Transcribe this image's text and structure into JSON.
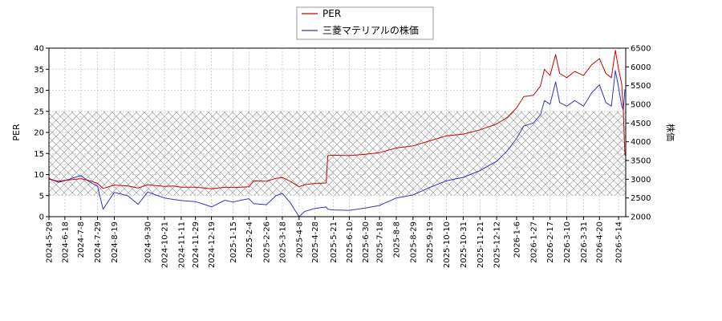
{
  "chart_data": {
    "type": "line",
    "title": "",
    "legend": {
      "placement": "top-center",
      "entries": [
        {
          "name": "PER",
          "color": "#cc0000"
        },
        {
          "name": "三菱マテリアルの株価",
          "color": "#3333cc"
        }
      ]
    },
    "y_left": {
      "label": "PER",
      "min": 0,
      "max": 40,
      "ticks": [
        "0",
        "5",
        "10",
        "15",
        "20",
        "25",
        "30",
        "35",
        "40"
      ]
    },
    "y_right": {
      "label": "株価",
      "min": 2000,
      "max": 6500,
      "ticks": [
        "2000",
        "2500",
        "3000",
        "3500",
        "4000",
        "4500",
        "5000",
        "5500",
        "6000",
        "6500"
      ]
    },
    "x_ticks": [
      "2024-5-29",
      "2024-6-18",
      "2024-7-8",
      "2024-7-29",
      "2024-8-19",
      "2024-9-30",
      "2024-10-21",
      "2024-11-11",
      "2024-11-29",
      "2024-12-19",
      "2025-1-15",
      "2025-2-4",
      "2025-2-26",
      "2025-3-18",
      "2025-4-8",
      "2025-4-28",
      "2025-5-21",
      "2025-6-10",
      "2025-6-30",
      "2025-7-18",
      "2025-8-8",
      "2025-8-29",
      "2025-9-19",
      "2025-10-10",
      "2025-10-31",
      "2025-11-21",
      "2025-12-12",
      "2026-1-6",
      "2026-1-27",
      "2026-2-17",
      "2026-3-10",
      "2026-3-31",
      "2026-4-20",
      "2026-5-14"
    ],
    "band": {
      "y_from": 5,
      "y_to": 25,
      "axis": "left",
      "pattern": "crosshatch"
    },
    "grid": true,
    "series": [
      {
        "name": "PER",
        "axis": "left",
        "color": "#cc0000",
        "points": [
          [
            "2024-5-29",
            8.9
          ],
          [
            "2024-6-10",
            8.4
          ],
          [
            "2024-6-18",
            8.6
          ],
          [
            "2024-6-28",
            8.8
          ],
          [
            "2024-7-8",
            9.0
          ],
          [
            "2024-7-18",
            8.6
          ],
          [
            "2024-7-29",
            7.9
          ],
          [
            "2024-8-5",
            6.7
          ],
          [
            "2024-8-19",
            7.5
          ],
          [
            "2024-9-5",
            7.3
          ],
          [
            "2024-9-18",
            6.8
          ],
          [
            "2024-9-30",
            7.6
          ],
          [
            "2024-10-10",
            7.4
          ],
          [
            "2024-10-21",
            7.2
          ],
          [
            "2024-11-1",
            7.3
          ],
          [
            "2024-11-11",
            7.0
          ],
          [
            "2024-11-29",
            7.0
          ],
          [
            "2024-12-10",
            6.8
          ],
          [
            "2024-12-19",
            6.6
          ],
          [
            "2025-1-5",
            7.0
          ],
          [
            "2025-1-15",
            6.9
          ],
          [
            "2025-1-25",
            7.0
          ],
          [
            "2025-2-4",
            7.1
          ],
          [
            "2025-2-10",
            8.5
          ],
          [
            "2025-2-26",
            8.4
          ],
          [
            "2025-3-10",
            9.1
          ],
          [
            "2025-3-18",
            9.3
          ],
          [
            "2025-3-28",
            8.4
          ],
          [
            "2025-4-8",
            7.1
          ],
          [
            "2025-4-15",
            7.6
          ],
          [
            "2025-4-28",
            7.9
          ],
          [
            "2025-5-12",
            8.0
          ],
          [
            "2025-5-14",
            14.5
          ],
          [
            "2025-5-21",
            14.6
          ],
          [
            "2025-6-10",
            14.5
          ],
          [
            "2025-6-30",
            14.8
          ],
          [
            "2025-7-18",
            15.2
          ],
          [
            "2025-8-8",
            16.3
          ],
          [
            "2025-8-29",
            16.8
          ],
          [
            "2025-9-19",
            18.0
          ],
          [
            "2025-10-10",
            19.2
          ],
          [
            "2025-10-31",
            19.6
          ],
          [
            "2025-11-21",
            20.6
          ],
          [
            "2025-12-12",
            22.0
          ],
          [
            "2025-12-25",
            23.5
          ],
          [
            "2026-1-6",
            25.8
          ],
          [
            "2026-1-15",
            28.5
          ],
          [
            "2026-1-27",
            28.8
          ],
          [
            "2026-2-5",
            31.0
          ],
          [
            "2026-2-10",
            35.0
          ],
          [
            "2026-2-17",
            33.5
          ],
          [
            "2026-2-24",
            38.5
          ],
          [
            "2026-3-1",
            34.0
          ],
          [
            "2026-3-10",
            33.0
          ],
          [
            "2026-3-20",
            34.5
          ],
          [
            "2026-3-31",
            33.5
          ],
          [
            "2026-4-10",
            36.0
          ],
          [
            "2026-4-20",
            37.5
          ],
          [
            "2026-4-28",
            34.0
          ],
          [
            "2026-5-5",
            33.0
          ],
          [
            "2026-5-10",
            39.5
          ],
          [
            "2026-5-14",
            35.0
          ],
          [
            "2026-5-18",
            31.5
          ],
          [
            "2026-5-20",
            25.0
          ],
          [
            "2026-5-22",
            14.5
          ]
        ]
      },
      {
        "name": "三菱マテリアルの株価",
        "axis": "right",
        "color": "#3333cc",
        "points": [
          [
            "2024-5-29",
            3020
          ],
          [
            "2024-6-10",
            2920
          ],
          [
            "2024-6-18",
            2960
          ],
          [
            "2024-6-28",
            3030
          ],
          [
            "2024-7-8",
            3100
          ],
          [
            "2024-7-18",
            2940
          ],
          [
            "2024-7-29",
            2810
          ],
          [
            "2024-8-5",
            2200
          ],
          [
            "2024-8-19",
            2650
          ],
          [
            "2024-9-5",
            2560
          ],
          [
            "2024-9-18",
            2330
          ],
          [
            "2024-9-30",
            2660
          ],
          [
            "2024-10-10",
            2580
          ],
          [
            "2024-10-21",
            2500
          ],
          [
            "2024-11-1",
            2460
          ],
          [
            "2024-11-11",
            2430
          ],
          [
            "2024-11-29",
            2400
          ],
          [
            "2024-12-10",
            2330
          ],
          [
            "2024-12-19",
            2260
          ],
          [
            "2025-1-5",
            2440
          ],
          [
            "2025-1-15",
            2390
          ],
          [
            "2025-1-25",
            2440
          ],
          [
            "2025-2-4",
            2480
          ],
          [
            "2025-2-10",
            2350
          ],
          [
            "2025-2-26",
            2320
          ],
          [
            "2025-3-10",
            2560
          ],
          [
            "2025-3-18",
            2620
          ],
          [
            "2025-3-28",
            2370
          ],
          [
            "2025-4-8",
            2000
          ],
          [
            "2025-4-15",
            2140
          ],
          [
            "2025-4-28",
            2220
          ],
          [
            "2025-5-12",
            2260
          ],
          [
            "2025-5-14",
            2200
          ],
          [
            "2025-5-21",
            2180
          ],
          [
            "2025-6-10",
            2170
          ],
          [
            "2025-6-30",
            2230
          ],
          [
            "2025-7-18",
            2300
          ],
          [
            "2025-8-8",
            2500
          ],
          [
            "2025-8-29",
            2580
          ],
          [
            "2025-9-19",
            2780
          ],
          [
            "2025-10-10",
            2960
          ],
          [
            "2025-10-31",
            3050
          ],
          [
            "2025-11-21",
            3230
          ],
          [
            "2025-12-12",
            3480
          ],
          [
            "2025-12-25",
            3750
          ],
          [
            "2026-1-6",
            4090
          ],
          [
            "2026-1-15",
            4420
          ],
          [
            "2026-1-27",
            4500
          ],
          [
            "2026-2-5",
            4720
          ],
          [
            "2026-2-10",
            5100
          ],
          [
            "2026-2-17",
            5000
          ],
          [
            "2026-2-24",
            5600
          ],
          [
            "2026-3-1",
            5050
          ],
          [
            "2026-3-10",
            4950
          ],
          [
            "2026-3-20",
            5100
          ],
          [
            "2026-3-31",
            4950
          ],
          [
            "2026-4-10",
            5300
          ],
          [
            "2026-4-20",
            5520
          ],
          [
            "2026-4-28",
            5050
          ],
          [
            "2026-5-5",
            4950
          ],
          [
            "2026-5-10",
            5900
          ],
          [
            "2026-5-14",
            5450
          ],
          [
            "2026-5-18",
            4950
          ],
          [
            "2026-5-20",
            4850
          ],
          [
            "2026-5-22",
            5400
          ]
        ]
      }
    ]
  }
}
